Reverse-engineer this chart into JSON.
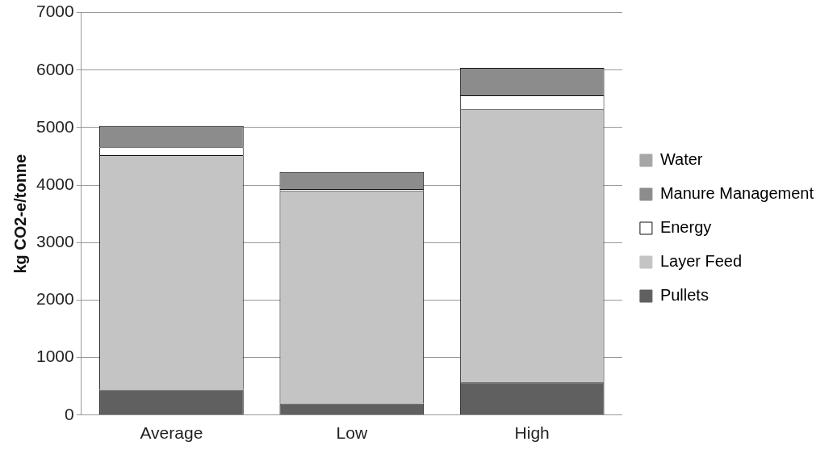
{
  "chart_data": {
    "type": "bar",
    "stacked": true,
    "ylabel": "kg CO2-e/tonne",
    "categories": [
      "Average",
      "Low",
      "High"
    ],
    "series": [
      {
        "name": "Pullets",
        "color": "#606060",
        "values": [
          440,
          200,
          570
        ]
      },
      {
        "name": "Layer Feed",
        "color": "#c4c4c4",
        "values": [
          4080,
          3700,
          4750
        ]
      },
      {
        "name": "Energy",
        "color": "#ffffff",
        "values": [
          140,
          30,
          240
        ]
      },
      {
        "name": "Manure Management",
        "color": "#8c8c8c",
        "values": [
          370,
          300,
          480
        ]
      },
      {
        "name": "Water",
        "color": "#a6a6a6",
        "values": [
          0,
          0,
          0
        ]
      }
    ],
    "ylim": [
      0,
      7000
    ],
    "yticks": [
      0,
      1000,
      2000,
      3000,
      4000,
      5000,
      6000,
      7000
    ],
    "grid": "y",
    "legend": "right"
  }
}
